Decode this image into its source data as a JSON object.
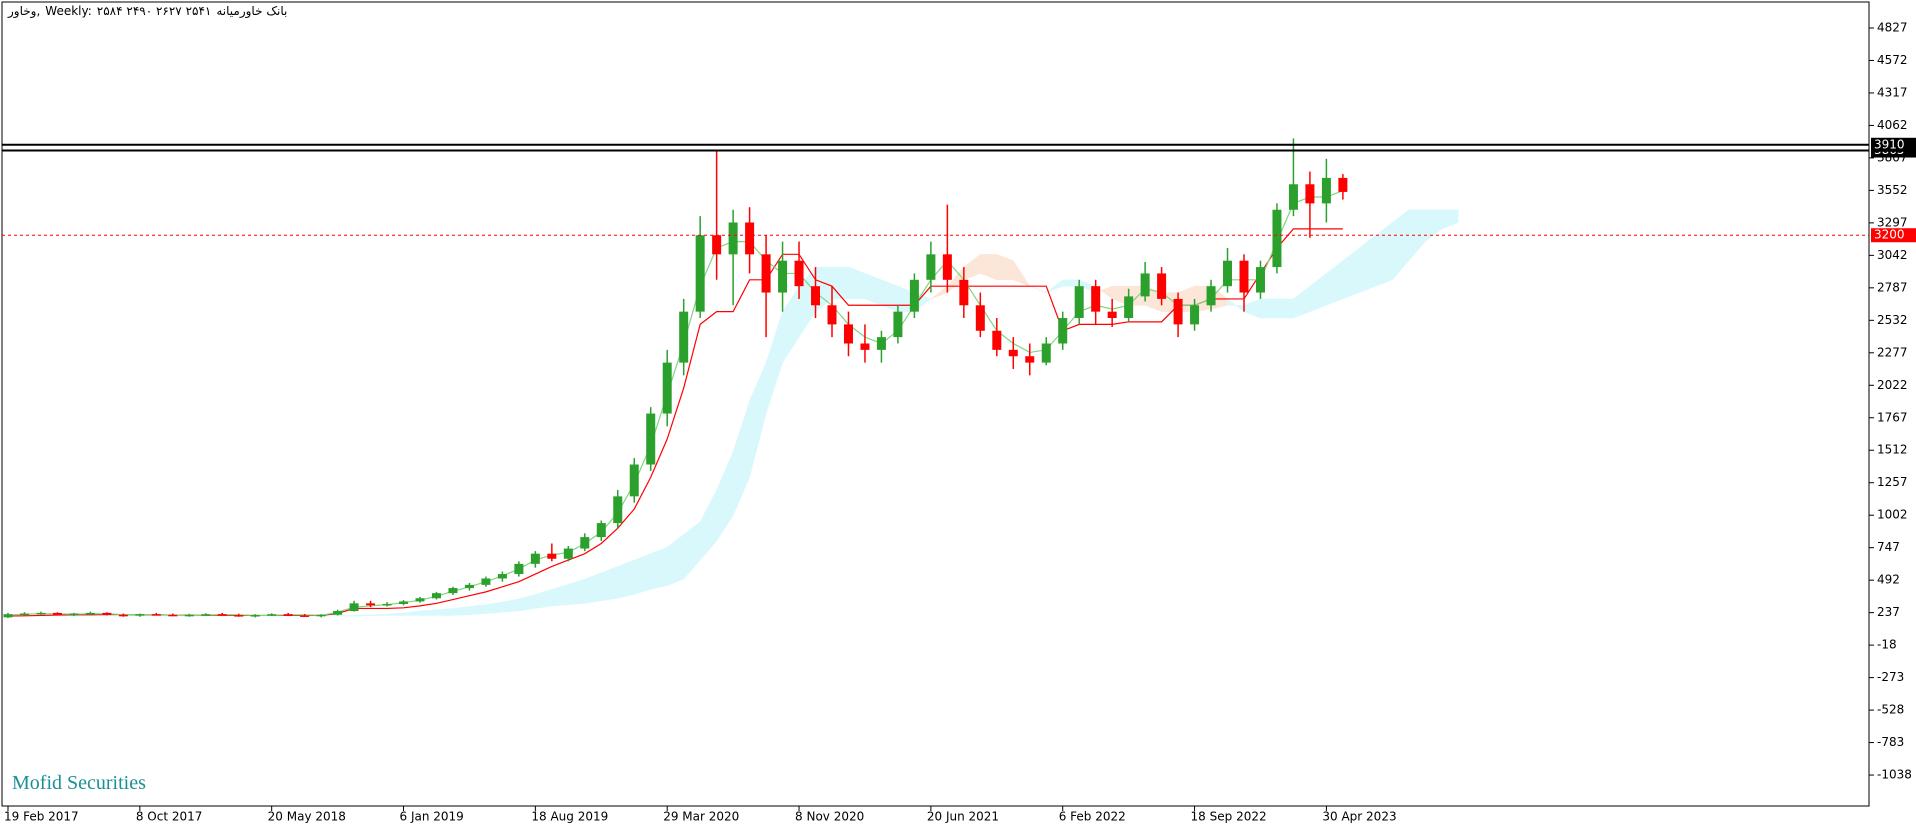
{
  "chart_data": {
    "type": "candlestick",
    "symbol": "وخاور,",
    "timeframe": "Weekly:",
    "ohlc": "۲۵۸۴ ۲۴۹۰ ۲۶۲۷ ۲۵۴۱",
    "name": "بانک خاورمیانه",
    "watermark": "Mofid Securities",
    "categories": [
      "19 Feb 2017",
      null,
      null,
      null,
      null,
      null,
      null,
      null,
      "8 Oct 2017",
      null,
      null,
      null,
      null,
      null,
      null,
      null,
      "20 May 2018",
      null,
      null,
      null,
      null,
      null,
      null,
      null,
      "6 Jan 2019",
      null,
      null,
      null,
      null,
      null,
      null,
      null,
      "18 Aug 2019",
      null,
      null,
      null,
      null,
      null,
      null,
      null,
      "29 Mar 2020",
      null,
      null,
      null,
      null,
      null,
      null,
      null,
      "8 Nov 2020",
      null,
      null,
      null,
      null,
      null,
      null,
      null,
      "20 Jun 2021",
      null,
      null,
      null,
      null,
      null,
      null,
      null,
      "6 Feb 2022",
      null,
      null,
      null,
      null,
      null,
      null,
      null,
      "18 Sep 2022",
      null,
      null,
      null,
      null,
      null,
      null,
      null,
      "30 Apr 2023",
      null
    ],
    "open": [
      200,
      225,
      230,
      235,
      220,
      230,
      235,
      220,
      215,
      225,
      220,
      215,
      220,
      225,
      218,
      212,
      218,
      225,
      215,
      210,
      220,
      250,
      310,
      295,
      305,
      325,
      350,
      390,
      430,
      455,
      505,
      540,
      620,
      700,
      660,
      740,
      830,
      940,
      1150,
      1400,
      1800,
      2200,
      2600,
      3200,
      3050,
      3300,
      3050,
      2750,
      3000,
      2800,
      2650,
      2500,
      2350,
      2300,
      2400,
      2600,
      2850,
      3050,
      2850,
      2650,
      2450,
      2300,
      2250,
      2200,
      2350,
      2550,
      2800,
      2600,
      2550,
      2720,
      2900,
      2700,
      2500,
      2650,
      2800,
      3000,
      2750,
      2950,
      3400,
      3600,
      3450,
      3650
    ],
    "high": [
      235,
      240,
      245,
      240,
      235,
      245,
      240,
      230,
      230,
      235,
      230,
      228,
      232,
      235,
      228,
      225,
      232,
      235,
      226,
      225,
      260,
      330,
      330,
      320,
      335,
      360,
      400,
      440,
      470,
      520,
      560,
      640,
      720,
      780,
      760,
      860,
      960,
      1200,
      1450,
      1850,
      2300,
      2700,
      3350,
      3860,
      3400,
      3420,
      3200,
      3150,
      3150,
      2950,
      2800,
      2600,
      2500,
      2450,
      2650,
      2900,
      3150,
      3440,
      2950,
      2750,
      2550,
      2400,
      2350,
      2400,
      2600,
      2850,
      2850,
      2700,
      2780,
      2990,
      2950,
      2750,
      2700,
      2850,
      3100,
      3050,
      3000,
      3450,
      3960,
      3700,
      3800,
      3680
    ],
    "low": [
      195,
      215,
      220,
      215,
      210,
      220,
      215,
      205,
      205,
      215,
      210,
      205,
      210,
      215,
      205,
      200,
      210,
      212,
      205,
      200,
      215,
      245,
      280,
      285,
      295,
      315,
      340,
      375,
      410,
      440,
      480,
      520,
      590,
      640,
      640,
      720,
      800,
      900,
      1100,
      1350,
      1700,
      2100,
      2550,
      2850,
      2650,
      2900,
      2400,
      2600,
      2700,
      2550,
      2400,
      2250,
      2200,
      2200,
      2350,
      2550,
      2750,
      2750,
      2550,
      2400,
      2250,
      2150,
      2100,
      2180,
      2300,
      2500,
      2500,
      2480,
      2520,
      2680,
      2650,
      2400,
      2450,
      2600,
      2750,
      2600,
      2700,
      2900,
      3350,
      3180,
      3300,
      3480
    ],
    "close": [
      225,
      230,
      235,
      220,
      230,
      235,
      220,
      215,
      225,
      220,
      215,
      220,
      225,
      218,
      212,
      218,
      225,
      215,
      210,
      220,
      250,
      310,
      295,
      305,
      325,
      350,
      390,
      430,
      455,
      505,
      540,
      620,
      700,
      660,
      740,
      830,
      940,
      1150,
      1400,
      1800,
      2200,
      2600,
      3200,
      3050,
      3300,
      3050,
      2750,
      3000,
      2800,
      2650,
      2500,
      2350,
      2300,
      2400,
      2600,
      2850,
      3050,
      2850,
      2650,
      2450,
      2300,
      2250,
      2200,
      2350,
      2550,
      2800,
      2600,
      2550,
      2720,
      2900,
      2700,
      2500,
      2650,
      2800,
      3000,
      2750,
      2950,
      3400,
      3600,
      3450,
      3650,
      3540
    ],
    "up_color": "#2ca02c",
    "down_color": "#ff0000",
    "lines": [
      {
        "color": "#ff0000",
        "values": [
          210,
          212,
          215,
          218,
          220,
          220,
          222,
          222,
          220,
          220,
          218,
          218,
          216,
          216,
          215,
          215,
          215,
          215,
          215,
          215,
          230,
          270,
          270,
          270,
          275,
          290,
          310,
          340,
          370,
          400,
          440,
          480,
          540,
          600,
          650,
          700,
          780,
          900,
          1050,
          1300,
          1600,
          2000,
          2500,
          2600,
          2600,
          2850,
          2850,
          3050,
          3050,
          2850,
          2800,
          2650,
          2650,
          2650,
          2650,
          2650,
          2800,
          2800,
          2800,
          2800,
          2800,
          2800,
          2800,
          2800,
          2450,
          2500,
          2500,
          2500,
          2520,
          2520,
          2520,
          2650,
          2650,
          2700,
          2700,
          2700,
          2900,
          3100,
          3250,
          3250,
          3250,
          3250
        ]
      },
      {
        "color": "#7ed67e",
        "values": [
          218,
          225,
          228,
          228,
          225,
          228,
          228,
          222,
          220,
          222,
          218,
          216,
          218,
          222,
          220,
          215,
          215,
          220,
          220,
          215,
          240,
          280,
          290,
          300,
          315,
          335,
          365,
          405,
          440,
          480,
          525,
          580,
          650,
          690,
          710,
          780,
          870,
          1020,
          1250,
          1550,
          1950,
          2350,
          2800,
          3100,
          3150,
          3150,
          3000,
          2900,
          2900,
          2750,
          2650,
          2500,
          2400,
          2350,
          2450,
          2650,
          2850,
          3000,
          2850,
          2650,
          2450,
          2350,
          2280,
          2300,
          2450,
          2600,
          2650,
          2620,
          2650,
          2780,
          2750,
          2650,
          2650,
          2700,
          2850,
          2850,
          2850,
          3150,
          3450,
          3500,
          3500,
          3550
        ]
      }
    ],
    "cloud": {
      "up_color": "#d9f8fc",
      "down_color": "#fbe6d8",
      "span_a": [
        218,
        218,
        218,
        218,
        218,
        218,
        218,
        218,
        218,
        218,
        218,
        218,
        218,
        218,
        218,
        218,
        218,
        218,
        218,
        218,
        215,
        215,
        220,
        225,
        235,
        250,
        260,
        270,
        285,
        300,
        320,
        345,
        380,
        420,
        460,
        500,
        550,
        600,
        650,
        700,
        750,
        850,
        950,
        1200,
        1500,
        1900,
        2200,
        2600,
        2800,
        2950,
        2950,
        2950,
        2900,
        2850,
        2800,
        2750,
        2700,
        2750,
        2850,
        2900,
        2850,
        2850,
        2800,
        2750,
        2850,
        2850,
        2800,
        2700,
        2650,
        2650,
        2600,
        2600,
        2600,
        2620,
        2650,
        2650,
        2700,
        2700,
        2700,
        2800,
        2900,
        3000,
        3100,
        3200,
        3300,
        3400,
        3400,
        3400,
        3400
      ],
      "span_b": [
        210,
        210,
        210,
        210,
        210,
        210,
        210,
        210,
        210,
        210,
        210,
        210,
        210,
        210,
        210,
        210,
        210,
        210,
        210,
        210,
        210,
        210,
        212,
        215,
        215,
        215,
        215,
        215,
        220,
        230,
        240,
        250,
        270,
        290,
        300,
        310,
        330,
        350,
        380,
        420,
        450,
        500,
        650,
        800,
        1000,
        1300,
        1800,
        2200,
        2400,
        2600,
        2700,
        2700,
        2700,
        2650,
        2600,
        2600,
        2700,
        2800,
        2950,
        3050,
        3050,
        3000,
        2800,
        2750,
        2800,
        2800,
        2750,
        2800,
        2800,
        2800,
        2750,
        2750,
        2800,
        2800,
        2700,
        2600,
        2550,
        2550,
        2550,
        2600,
        2650,
        2700,
        2750,
        2800,
        2850,
        3000,
        3150,
        3250,
        3300
      ]
    },
    "hlines": [
      {
        "value": 3865,
        "color": "#000000",
        "dash": false
      },
      {
        "value": 3910,
        "color": "#000000",
        "dash": false
      },
      {
        "value": 3200,
        "color": "#ff0000",
        "dash": true
      }
    ],
    "ylim": [
      -1281,
      5031
    ],
    "yticks": [
      4827,
      4572,
      4317,
      4062,
      3807,
      3552,
      3297,
      3042,
      2787,
      2532,
      2277,
      2022,
      1767,
      1512,
      1257,
      1002,
      747,
      492,
      237,
      -18,
      -273,
      -528,
      -783,
      -1038
    ]
  }
}
